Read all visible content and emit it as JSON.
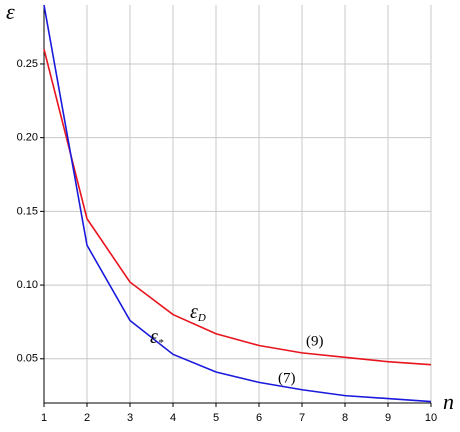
{
  "chart_data": {
    "type": "line",
    "x_label": "n",
    "y_label": "ε",
    "x": [
      1,
      2,
      3,
      4,
      5,
      6,
      7,
      8,
      9,
      10
    ],
    "series": [
      {
        "name": "εD",
        "color": "#e8141e",
        "values": [
          0.26,
          0.145,
          0.102,
          0.08,
          0.067,
          0.059,
          0.054,
          0.051,
          0.048,
          0.046
        ]
      },
      {
        "name": "ε*",
        "color": "#1a1adc",
        "values": [
          0.29,
          0.127,
          0.076,
          0.053,
          0.041,
          0.034,
          0.029,
          0.025,
          0.023,
          0.021
        ]
      }
    ],
    "annotations": [
      {
        "symbol": "ε",
        "sub": "D"
      },
      {
        "symbol": "ε",
        "sub": "*"
      },
      {
        "text": "(9)"
      },
      {
        "text": "(7)"
      }
    ],
    "xlim": [
      1,
      10
    ],
    "xticks": [
      1,
      2,
      3,
      4,
      5,
      6,
      7,
      8,
      9,
      10
    ],
    "ylim": [
      0.02,
      0.29
    ],
    "yticks": [
      0.05,
      {
        "value": 0.1,
        "label": "0.10"
      },
      0.15,
      {
        "value": 0.2,
        "label": "0.20"
      },
      0.25
    ],
    "grid": true
  }
}
